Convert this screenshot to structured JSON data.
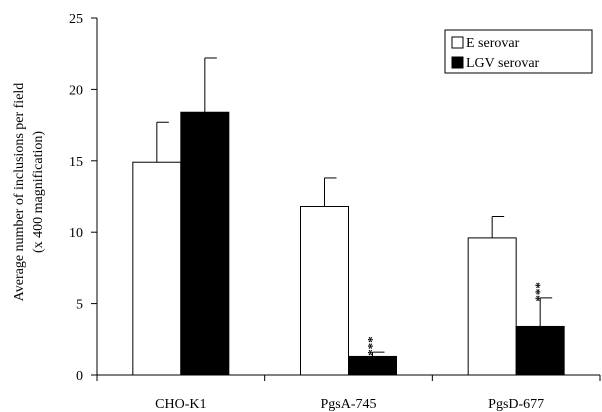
{
  "chart_data": {
    "type": "bar",
    "ylabel_lines": [
      "Average number of inclusions per field",
      "(x 400 magnification)"
    ],
    "categories": [
      "CHO-K1",
      "PgsA-745",
      "PgsD-677"
    ],
    "ylim": [
      0,
      25
    ],
    "yticks": [
      0,
      5,
      10,
      15,
      20,
      25
    ],
    "grid": false,
    "legend_position": "top-right",
    "series": [
      {
        "name": "E serovar",
        "fill": "#ffffff",
        "values": [
          14.9,
          11.8,
          9.6
        ],
        "errors": [
          2.8,
          2.0,
          1.5
        ],
        "annotations": [
          "",
          "",
          ""
        ]
      },
      {
        "name": "LGV serovar",
        "fill": "#000000",
        "values": [
          18.4,
          1.3,
          3.4
        ],
        "errors": [
          3.8,
          0.3,
          2.0
        ],
        "annotations": [
          "",
          "***",
          "***"
        ]
      }
    ]
  }
}
